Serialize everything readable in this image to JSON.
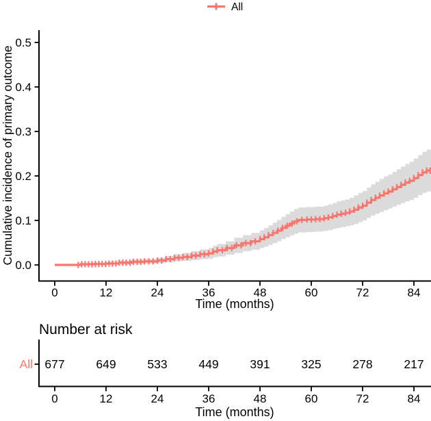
{
  "legend": {
    "label": "All"
  },
  "main_plot": {
    "ylabel": "Cumulative incidence of primary outcome",
    "xlabel": "Time (months)"
  },
  "risk_table": {
    "title": "Number at risk",
    "row_label": "All",
    "xlabel": "Time (months)",
    "time_points": [
      0,
      12,
      24,
      36,
      48,
      60,
      72,
      84
    ],
    "values": [
      "677",
      "649",
      "533",
      "449",
      "391",
      "325",
      "278",
      "217"
    ]
  },
  "colors": {
    "series": "#F8766D",
    "ci_band": "#DBDBDB",
    "axis": "#000000",
    "text": "#000000"
  },
  "chart_data": {
    "type": "line",
    "step": true,
    "title": "",
    "xlabel": "Time (months)",
    "ylabel": "Cumulative incidence of primary outcome",
    "xlim": [
      0,
      88
    ],
    "ylim": [
      0,
      0.5
    ],
    "x_ticks": [
      0,
      12,
      24,
      36,
      48,
      60,
      72,
      84
    ],
    "y_ticks": [
      0,
      0.1,
      0.2,
      0.3,
      0.4,
      0.5
    ],
    "y_tick_labels": [
      "0.0",
      "0.1",
      "0.2",
      "0.3",
      "0.4",
      "0.5"
    ],
    "grid": false,
    "legend_position": "top",
    "series": [
      {
        "name": "All",
        "color": "#F8766D",
        "t": [
          0,
          6,
          9,
          12,
          15,
          18,
          21,
          24,
          26,
          28,
          30,
          32,
          34,
          36,
          37,
          38,
          40,
          42,
          44,
          46,
          48,
          49,
          50,
          51,
          52,
          53,
          54,
          55,
          56,
          57,
          59,
          61,
          63,
          64,
          65,
          66,
          67,
          68,
          69,
          70,
          71,
          72,
          73,
          74,
          75,
          76,
          77,
          78,
          79,
          80,
          81,
          82,
          83,
          84,
          85,
          86,
          87,
          88
        ],
        "estimate": [
          0,
          0.0015,
          0.002,
          0.003,
          0.005,
          0.007,
          0.008,
          0.01,
          0.013,
          0.016,
          0.018,
          0.021,
          0.024,
          0.026,
          0.03,
          0.033,
          0.038,
          0.044,
          0.049,
          0.053,
          0.058,
          0.062,
          0.067,
          0.072,
          0.077,
          0.083,
          0.088,
          0.093,
          0.098,
          0.101,
          0.102,
          0.103,
          0.105,
          0.107,
          0.11,
          0.113,
          0.115,
          0.117,
          0.12,
          0.124,
          0.129,
          0.133,
          0.14,
          0.146,
          0.151,
          0.156,
          0.161,
          0.165,
          0.17,
          0.175,
          0.18,
          0.185,
          0.189,
          0.195,
          0.202,
          0.208,
          0.212,
          0.216
        ],
        "lower": [
          0,
          0,
          0,
          0.001,
          0.001,
          0.002,
          0.003,
          0.004,
          0.006,
          0.008,
          0.009,
          0.011,
          0.013,
          0.014,
          0.017,
          0.019,
          0.023,
          0.027,
          0.031,
          0.034,
          0.038,
          0.041,
          0.045,
          0.049,
          0.053,
          0.058,
          0.062,
          0.066,
          0.07,
          0.073,
          0.074,
          0.075,
          0.077,
          0.078,
          0.081,
          0.083,
          0.085,
          0.087,
          0.089,
          0.092,
          0.096,
          0.1,
          0.106,
          0.111,
          0.115,
          0.119,
          0.123,
          0.127,
          0.131,
          0.135,
          0.139,
          0.143,
          0.146,
          0.151,
          0.157,
          0.162,
          0.165,
          0.168
        ],
        "upper": [
          0,
          0.004,
          0.005,
          0.007,
          0.009,
          0.012,
          0.013,
          0.016,
          0.02,
          0.024,
          0.027,
          0.031,
          0.035,
          0.038,
          0.043,
          0.047,
          0.053,
          0.061,
          0.067,
          0.072,
          0.078,
          0.083,
          0.089,
          0.095,
          0.101,
          0.108,
          0.114,
          0.12,
          0.126,
          0.129,
          0.13,
          0.131,
          0.133,
          0.136,
          0.139,
          0.143,
          0.145,
          0.147,
          0.151,
          0.156,
          0.162,
          0.166,
          0.174,
          0.181,
          0.187,
          0.193,
          0.199,
          0.203,
          0.209,
          0.215,
          0.221,
          0.227,
          0.232,
          0.239,
          0.247,
          0.254,
          0.259,
          0.264
        ],
        "censor_times": [
          5.5,
          6.3,
          7.1,
          7.9,
          8.7,
          9.5,
          10.3,
          11.1,
          11.9,
          12.7,
          13.5,
          14.3,
          15.1,
          15.9,
          16.7,
          17.6,
          18.4,
          19.3,
          20.1,
          21,
          22,
          23,
          24,
          25,
          26,
          27,
          28,
          29,
          30,
          31,
          32,
          33,
          34,
          35,
          36,
          37,
          38,
          39.2,
          40.3,
          41.4,
          42.5,
          43.6,
          44.7,
          45.8,
          46.9,
          48,
          49,
          50,
          51.1,
          52.2,
          53.3,
          54.4,
          55.5,
          56.6,
          57.8,
          59,
          60,
          61,
          62,
          63,
          64,
          65,
          66,
          67,
          68,
          69,
          70,
          71,
          72,
          73,
          74,
          75,
          76,
          77,
          78,
          79,
          80,
          81,
          82,
          83,
          84,
          85,
          86,
          87,
          87.8
        ]
      }
    ]
  }
}
